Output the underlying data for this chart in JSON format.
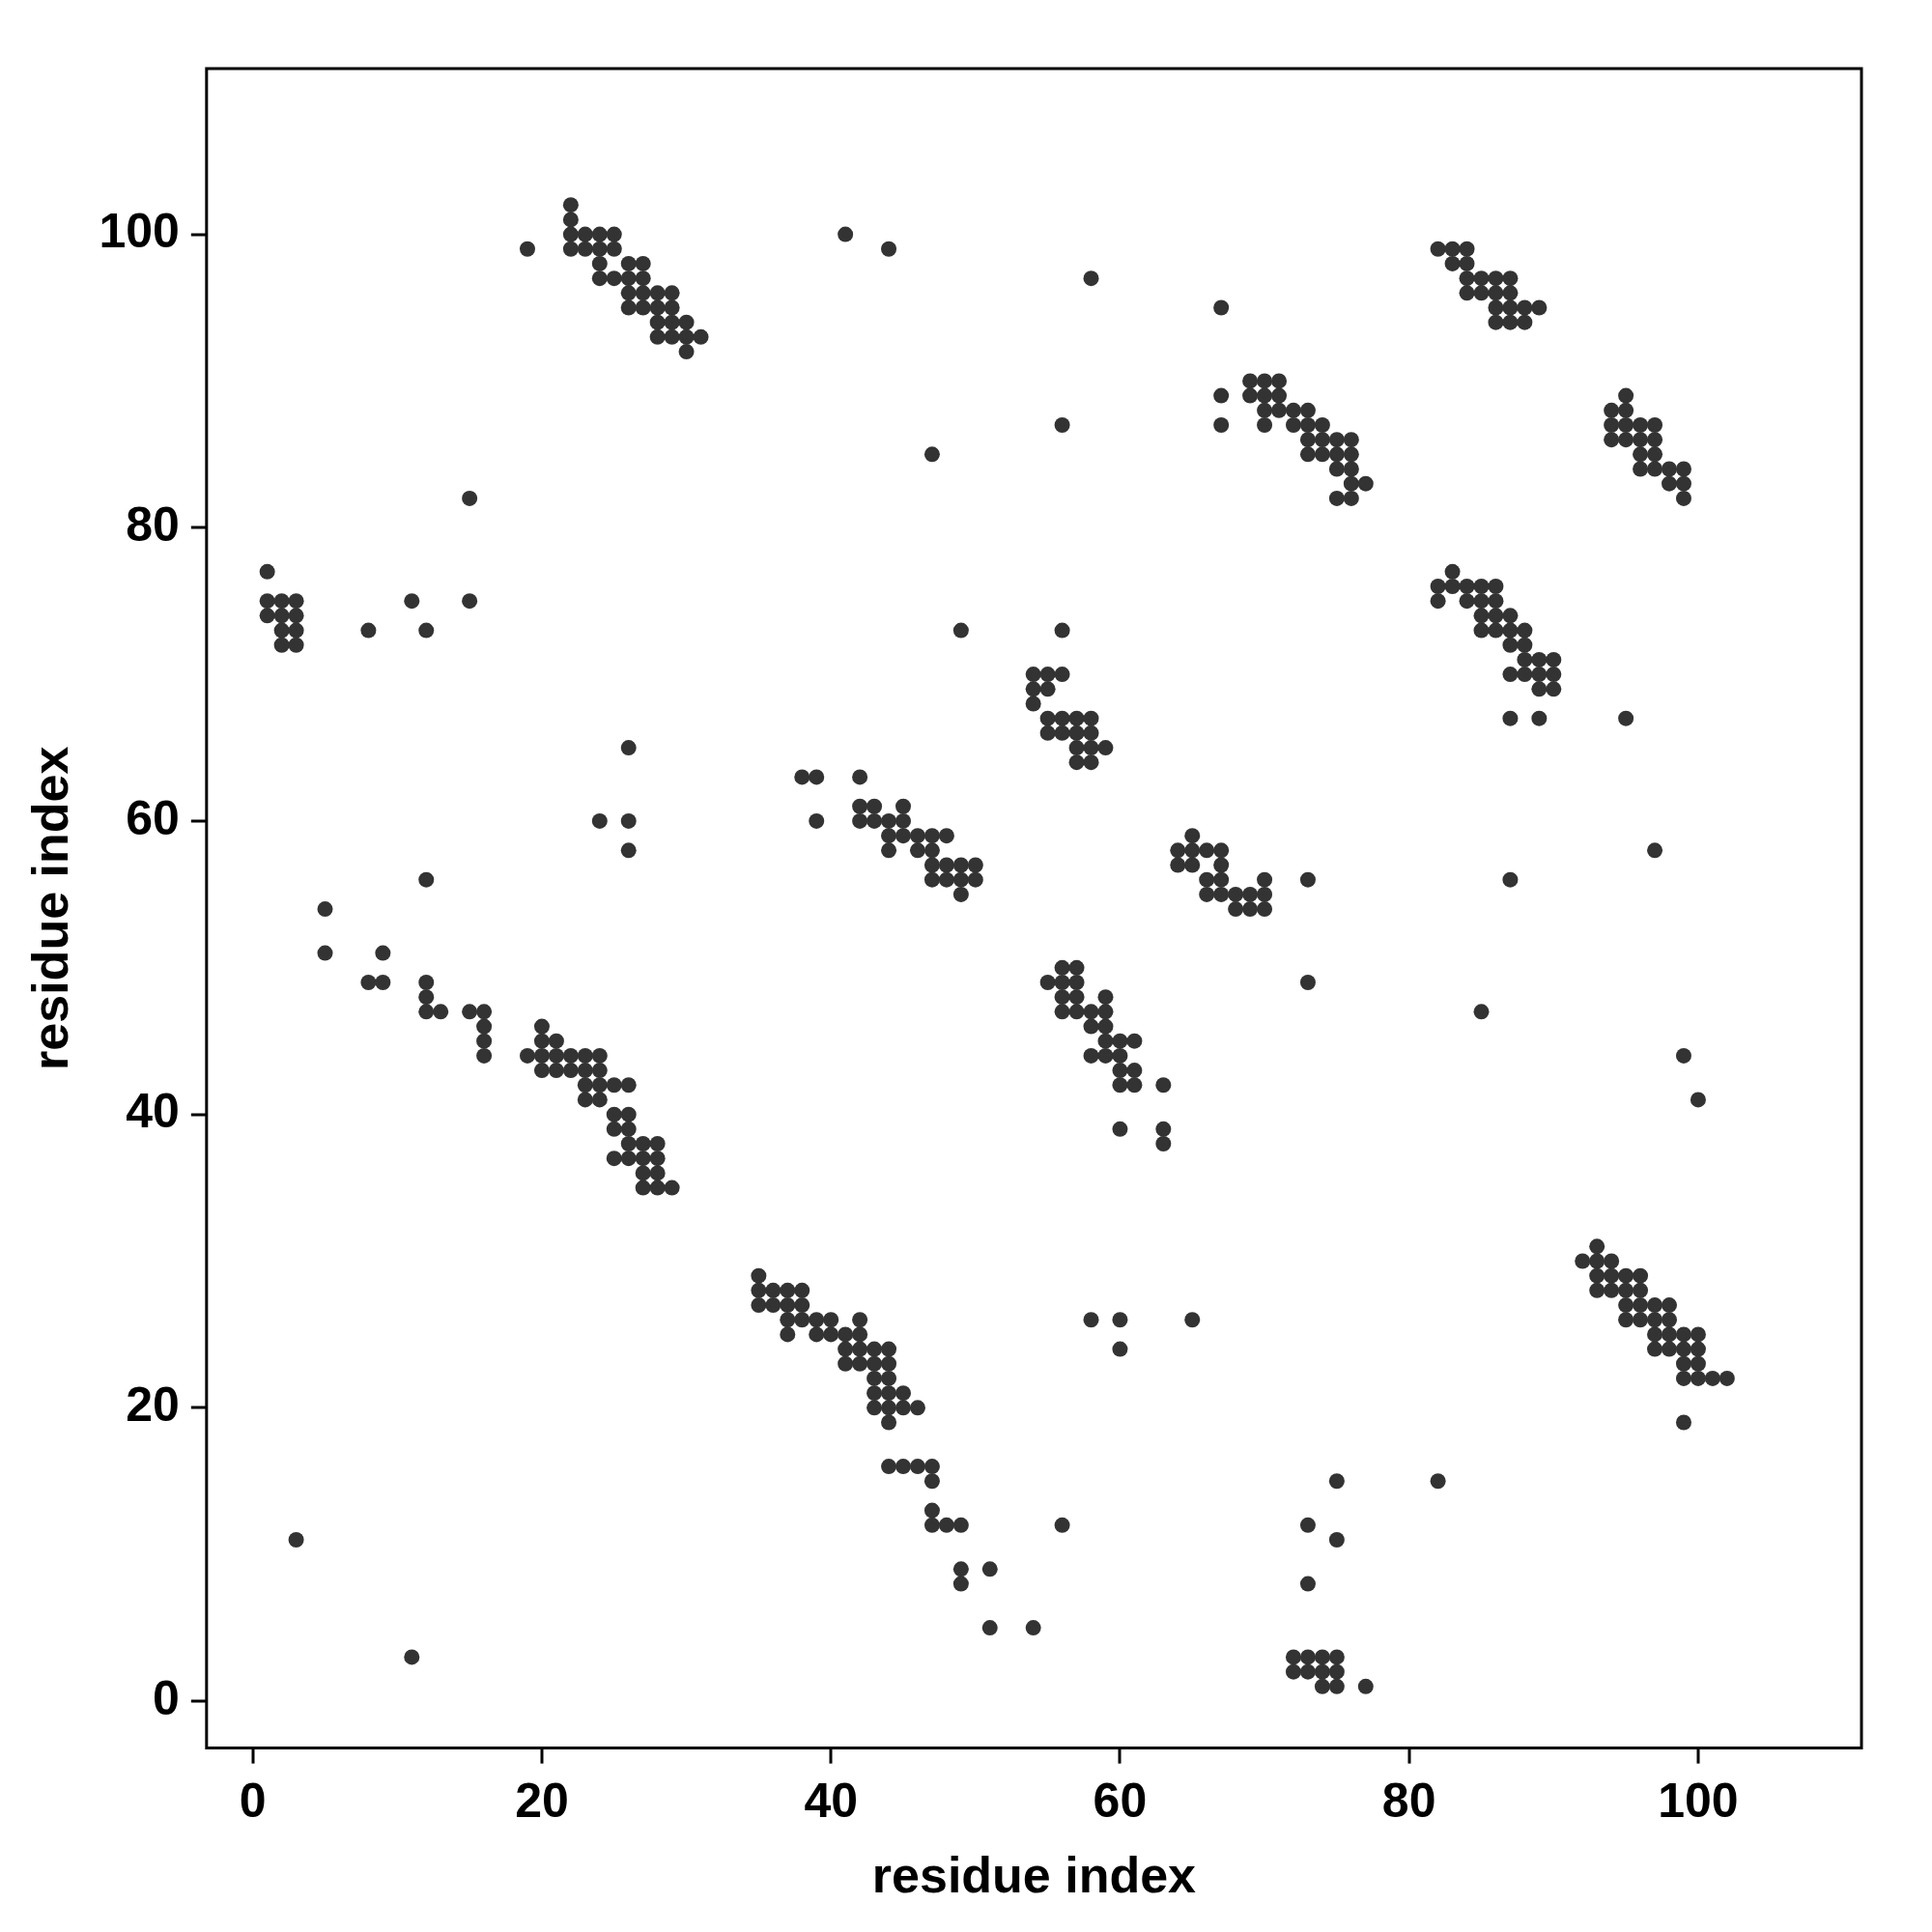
{
  "chart_data": {
    "type": "scatter",
    "xlabel": "residue index",
    "ylabel": "residue index",
    "color": "#333333",
    "marker": "circle",
    "legend": false,
    "grid": false,
    "xlim": [
      -3.2,
      111.3
    ],
    "ylim": [
      -3.2,
      111.3
    ],
    "xticks": [
      0,
      20,
      40,
      60,
      80,
      100
    ],
    "yticks": [
      0,
      20,
      40,
      60,
      80,
      100
    ],
    "x": [
      19,
      22,
      22,
      22,
      22,
      23,
      23,
      24,
      24,
      24,
      24,
      25,
      25,
      25,
      26,
      26,
      26,
      26,
      27,
      27,
      27,
      27,
      28,
      28,
      28,
      28,
      29,
      29,
      29,
      29,
      30,
      30,
      30,
      31,
      41,
      44,
      58,
      67,
      67,
      67,
      56,
      47,
      15,
      15,
      11,
      12,
      8,
      49,
      56,
      82,
      83,
      83,
      84,
      84,
      84,
      84,
      85,
      85,
      86,
      86,
      86,
      86,
      87,
      87,
      87,
      87,
      88,
      88,
      89,
      69,
      69,
      70,
      70,
      70,
      70,
      71,
      71,
      71,
      72,
      72,
      73,
      73,
      73,
      73,
      74,
      74,
      74,
      75,
      75,
      75,
      75,
      76,
      76,
      76,
      76,
      76,
      77,
      94,
      94,
      94,
      95,
      95,
      95,
      95,
      96,
      96,
      96,
      96,
      97,
      97,
      97,
      97,
      98,
      98,
      99,
      99,
      99,
      1,
      1,
      1,
      2,
      2,
      2,
      2,
      3,
      3,
      3,
      3,
      82,
      82,
      83,
      83,
      84,
      84,
      85,
      85,
      85,
      85,
      86,
      86,
      86,
      86,
      87,
      87,
      87,
      87,
      87,
      88,
      88,
      88,
      88,
      89,
      89,
      89,
      89,
      90,
      90,
      90,
      54,
      54,
      54,
      55,
      55,
      55,
      55,
      56,
      56,
      56,
      57,
      57,
      57,
      57,
      58,
      58,
      58,
      58,
      59,
      95,
      26,
      38,
      39,
      42,
      24,
      26,
      39,
      26,
      97,
      12,
      73,
      87,
      5,
      5,
      9,
      8,
      9,
      73,
      85,
      99,
      100,
      42,
      42,
      43,
      43,
      44,
      44,
      44,
      45,
      45,
      45,
      46,
      46,
      47,
      47,
      47,
      47,
      48,
      48,
      48,
      49,
      49,
      49,
      50,
      50,
      64,
      64,
      65,
      65,
      65,
      66,
      66,
      66,
      67,
      67,
      67,
      67,
      68,
      68,
      69,
      69,
      70,
      70,
      70,
      55,
      56,
      56,
      56,
      56,
      57,
      57,
      57,
      57,
      58,
      58,
      58,
      59,
      59,
      59,
      59,
      59,
      60,
      60,
      60,
      60,
      61,
      61,
      61,
      63,
      60,
      63,
      63,
      12,
      12,
      12,
      13,
      15,
      16,
      16,
      16,
      16,
      19,
      20,
      20,
      20,
      20,
      21,
      21,
      21,
      22,
      22,
      23,
      23,
      23,
      23,
      24,
      24,
      24,
      24,
      25,
      25,
      25,
      25,
      26,
      26,
      26,
      26,
      26,
      27,
      27,
      27,
      27,
      28,
      28,
      28,
      28,
      29,
      35,
      35,
      35,
      36,
      36,
      37,
      37,
      37,
      37,
      38,
      38,
      38,
      39,
      39,
      40,
      40,
      41,
      41,
      41,
      42,
      42,
      42,
      42,
      43,
      43,
      43,
      43,
      43,
      44,
      44,
      44,
      44,
      44,
      44,
      45,
      45,
      46,
      44,
      45,
      46,
      47,
      47,
      47,
      47,
      48,
      49,
      49,
      49,
      51,
      51,
      54,
      92,
      93,
      93,
      93,
      93,
      94,
      94,
      94,
      95,
      95,
      95,
      95,
      96,
      96,
      96,
      96,
      97,
      97,
      97,
      97,
      98,
      98,
      98,
      98,
      99,
      99,
      99,
      99,
      99,
      100,
      100,
      100,
      100,
      101,
      102,
      58,
      60,
      60,
      65,
      3,
      11,
      56,
      73,
      73,
      75,
      75,
      82,
      72,
      72,
      73,
      73,
      74,
      74,
      74,
      75,
      75,
      75,
      77
    ],
    "values": [
      99,
      102,
      101,
      100,
      99,
      100,
      99,
      100,
      99,
      98,
      97,
      100,
      99,
      97,
      98,
      97,
      96,
      95,
      98,
      97,
      96,
      95,
      96,
      95,
      94,
      93,
      96,
      95,
      94,
      93,
      94,
      93,
      92,
      93,
      100,
      99,
      97,
      95,
      89,
      87,
      87,
      85,
      82,
      75,
      75,
      73,
      73,
      73,
      73,
      99,
      99,
      98,
      99,
      98,
      97,
      96,
      97,
      96,
      97,
      96,
      95,
      94,
      97,
      96,
      95,
      94,
      95,
      94,
      95,
      90,
      89,
      90,
      89,
      88,
      87,
      90,
      89,
      88,
      88,
      87,
      88,
      87,
      86,
      85,
      87,
      86,
      85,
      86,
      85,
      84,
      82,
      86,
      85,
      84,
      83,
      82,
      83,
      88,
      87,
      86,
      89,
      88,
      87,
      86,
      87,
      86,
      85,
      84,
      87,
      86,
      85,
      84,
      84,
      83,
      84,
      83,
      82,
      77,
      75,
      74,
      75,
      74,
      73,
      72,
      75,
      74,
      73,
      72,
      76,
      75,
      77,
      76,
      76,
      75,
      76,
      75,
      74,
      73,
      76,
      75,
      74,
      73,
      74,
      73,
      72,
      70,
      67,
      73,
      72,
      71,
      70,
      71,
      70,
      69,
      67,
      71,
      70,
      69,
      70,
      69,
      68,
      70,
      69,
      67,
      66,
      70,
      67,
      66,
      67,
      66,
      65,
      64,
      67,
      66,
      65,
      64,
      65,
      67,
      65,
      63,
      63,
      63,
      60,
      60,
      60,
      58,
      58,
      56,
      56,
      56,
      54,
      51,
      51,
      49,
      49,
      49,
      47,
      44,
      41,
      61,
      60,
      61,
      60,
      60,
      59,
      58,
      61,
      60,
      59,
      59,
      58,
      59,
      58,
      57,
      56,
      59,
      57,
      56,
      57,
      56,
      55,
      57,
      56,
      58,
      57,
      59,
      58,
      57,
      58,
      56,
      55,
      58,
      57,
      56,
      55,
      55,
      54,
      55,
      54,
      56,
      55,
      54,
      49,
      50,
      49,
      48,
      47,
      50,
      49,
      48,
      47,
      47,
      46,
      44,
      48,
      47,
      46,
      45,
      44,
      45,
      44,
      43,
      42,
      45,
      43,
      42,
      42,
      39,
      39,
      38,
      49,
      48,
      47,
      47,
      47,
      47,
      46,
      45,
      44,
      44,
      46,
      45,
      44,
      43,
      45,
      44,
      43,
      44,
      43,
      44,
      43,
      42,
      41,
      44,
      43,
      42,
      41,
      42,
      40,
      39,
      37,
      42,
      40,
      39,
      38,
      37,
      38,
      37,
      36,
      35,
      38,
      37,
      36,
      35,
      35,
      29,
      28,
      27,
      28,
      27,
      28,
      27,
      26,
      25,
      28,
      27,
      26,
      26,
      25,
      26,
      25,
      25,
      24,
      23,
      26,
      25,
      24,
      23,
      24,
      23,
      22,
      21,
      20,
      24,
      23,
      22,
      21,
      20,
      19,
      21,
      20,
      20,
      16,
      16,
      16,
      16,
      15,
      13,
      12,
      12,
      12,
      9,
      8,
      9,
      5,
      5,
      30,
      31,
      30,
      29,
      28,
      30,
      29,
      28,
      29,
      28,
      27,
      26,
      29,
      28,
      27,
      26,
      27,
      26,
      25,
      24,
      27,
      26,
      25,
      24,
      25,
      24,
      23,
      22,
      19,
      25,
      24,
      23,
      22,
      22,
      22,
      26,
      26,
      24,
      26,
      11,
      3,
      12,
      12,
      8,
      15,
      11,
      15,
      3,
      2,
      3,
      2,
      3,
      2,
      1,
      3,
      2,
      1,
      1
    ]
  }
}
